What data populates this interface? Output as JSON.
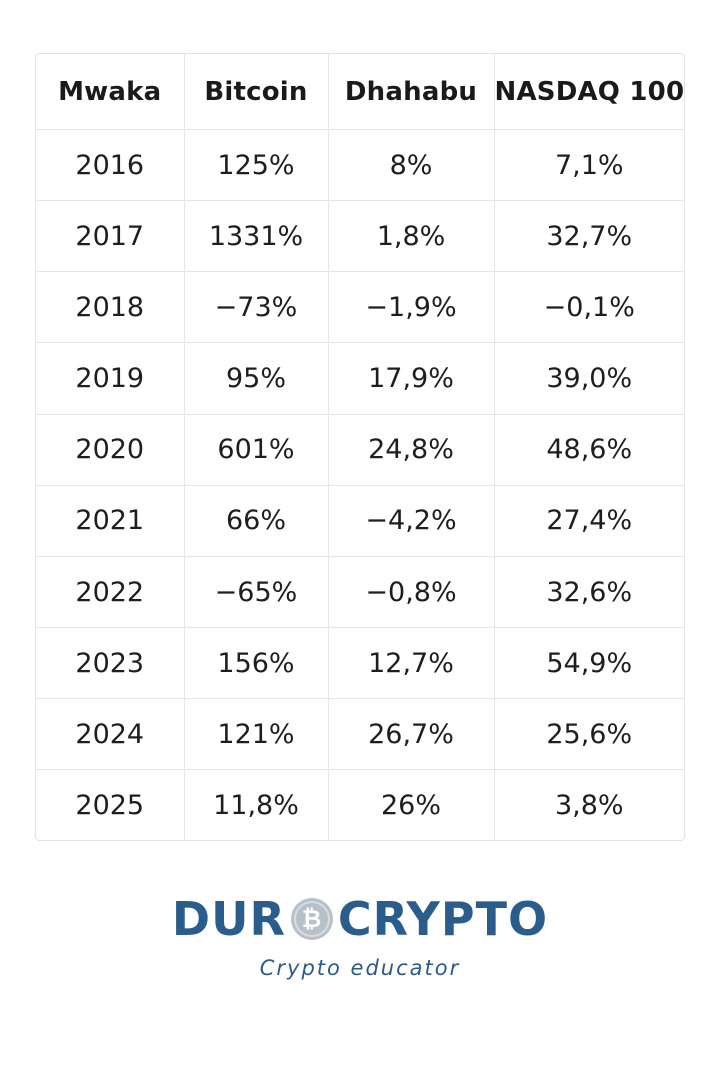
{
  "chart_data": {
    "type": "table",
    "columns": [
      "Mwaka",
      "Bitcoin",
      "Dhahabu",
      "NASDAQ 100"
    ],
    "rows": [
      [
        "2016",
        "125%",
        "8%",
        "7,1%"
      ],
      [
        "2017",
        "1331%",
        "1,8%",
        "32,7%"
      ],
      [
        "2018",
        "−73%",
        "−1,9%",
        "−0,1%"
      ],
      [
        "2019",
        "95%",
        "17,9%",
        "39,0%"
      ],
      [
        "2020",
        "601%",
        "24,8%",
        "48,6%"
      ],
      [
        "2021",
        "66%",
        "−4,2%",
        "27,4%"
      ],
      [
        "2022",
        "−65%",
        "−0,8%",
        "32,6%"
      ],
      [
        "2023",
        "156%",
        "12,7%",
        "54,9%"
      ],
      [
        "2024",
        "121%",
        "26,7%",
        "25,6%"
      ],
      [
        "2025",
        "11,8%",
        "26%",
        "3,8%"
      ]
    ]
  },
  "logo": {
    "brand_left": "DUR",
    "brand_right": "CRYPTO",
    "coin_symbol": "₿",
    "tagline": "Crypto educator",
    "brand_color": "#2b5d8c",
    "coin_color": "#b8bfc7",
    "icon": "bitcoin-coin-icon"
  }
}
